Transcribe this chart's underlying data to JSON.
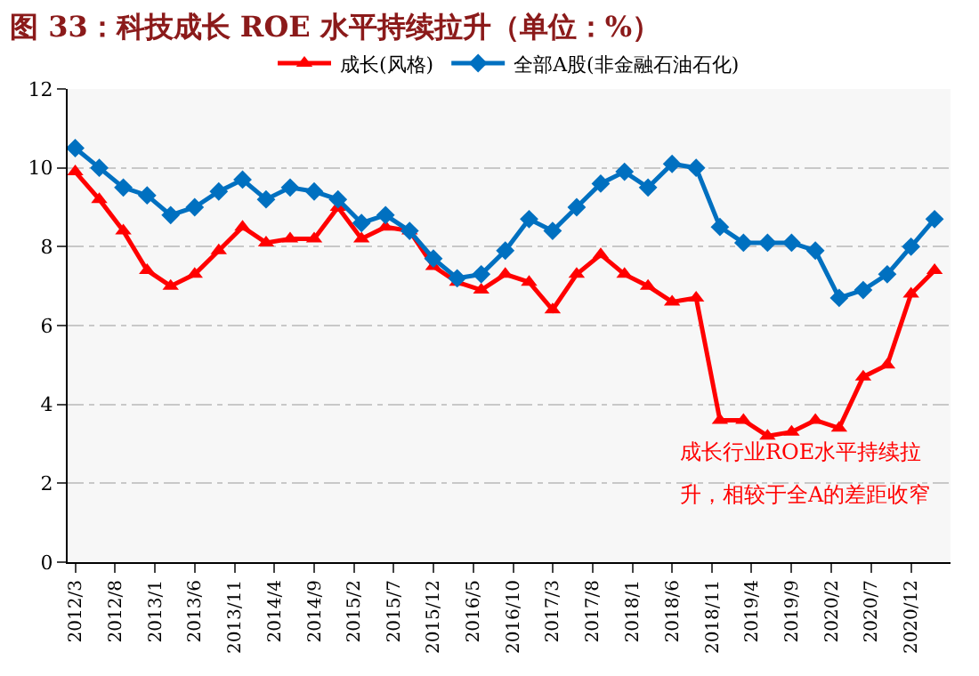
{
  "chart_data": {
    "type": "line",
    "title": "图 33：科技成长 ROE 水平持续拉升（单位：%）",
    "x": [
      "2012-03",
      "2012-06",
      "2012-09",
      "2012-12",
      "2013-03",
      "2013-06",
      "2013-09",
      "2013-12",
      "2014-03",
      "2014-06",
      "2014-09",
      "2014-12",
      "2015-03",
      "2015-06",
      "2015-09",
      "2015-12",
      "2016-03",
      "2016-06",
      "2016-09",
      "2016-12",
      "2017-03",
      "2017-06",
      "2017-09",
      "2017-12",
      "2018-03",
      "2018-06",
      "2018-09",
      "2018-12",
      "2019-03",
      "2019-06",
      "2019-09",
      "2019-12",
      "2020-03",
      "2020-06",
      "2020-09",
      "2020-12",
      "2021-03"
    ],
    "series": [
      {
        "name": "成长(风格)",
        "color": "#ff0000",
        "marker": "triangle",
        "values": [
          9.9,
          9.2,
          8.4,
          7.4,
          7.0,
          7.3,
          7.9,
          8.5,
          8.1,
          8.2,
          8.2,
          9.0,
          8.2,
          8.5,
          8.4,
          7.5,
          7.1,
          6.9,
          7.3,
          7.1,
          6.4,
          7.3,
          7.8,
          7.3,
          7.0,
          6.6,
          6.7,
          3.6,
          3.6,
          3.2,
          3.3,
          3.6,
          3.4,
          4.7,
          5.0,
          6.8,
          7.4
        ]
      },
      {
        "name": "全部A股(非金融石油石化)",
        "color": "#0070c0",
        "marker": "diamond",
        "values": [
          10.5,
          10.0,
          9.5,
          9.3,
          8.8,
          9.0,
          9.4,
          9.7,
          9.2,
          9.5,
          9.4,
          9.2,
          8.6,
          8.8,
          8.4,
          7.7,
          7.2,
          7.3,
          7.9,
          8.7,
          8.4,
          9.0,
          9.6,
          9.9,
          9.5,
          10.1,
          10.0,
          8.5,
          8.1,
          8.1,
          8.1,
          7.9,
          6.7,
          6.9,
          7.3,
          8.0,
          8.7
        ]
      }
    ],
    "xlim": [
      "2012-02",
      "2021-05"
    ],
    "xticks": [
      {
        "value": "2012-03",
        "label": "2012/3"
      },
      {
        "value": "2012-08",
        "label": "2012/8"
      },
      {
        "value": "2013-01",
        "label": "2013/1"
      },
      {
        "value": "2013-06",
        "label": "2013/6"
      },
      {
        "value": "2013-11",
        "label": "2013/11"
      },
      {
        "value": "2014-04",
        "label": "2014/4"
      },
      {
        "value": "2014-09",
        "label": "2014/9"
      },
      {
        "value": "2015-02",
        "label": "2015/2"
      },
      {
        "value": "2015-07",
        "label": "2015/7"
      },
      {
        "value": "2015-12",
        "label": "2015/12"
      },
      {
        "value": "2016-05",
        "label": "2016/5"
      },
      {
        "value": "2016-10",
        "label": "2016/10"
      },
      {
        "value": "2017-03",
        "label": "2017/3"
      },
      {
        "value": "2017-08",
        "label": "2017/8"
      },
      {
        "value": "2018-01",
        "label": "2018/1"
      },
      {
        "value": "2018-06",
        "label": "2018/6"
      },
      {
        "value": "2018-11",
        "label": "2018/11"
      },
      {
        "value": "2019-04",
        "label": "2019/4"
      },
      {
        "value": "2019-09",
        "label": "2019/9"
      },
      {
        "value": "2020-02",
        "label": "2020/2"
      },
      {
        "value": "2020-07",
        "label": "2020/7"
      },
      {
        "value": "2020-12",
        "label": "2020/12"
      }
    ],
    "ylim": [
      0,
      12
    ],
    "yticks": [
      0,
      2,
      4,
      6,
      8,
      10,
      12
    ],
    "grid": "y",
    "legend": "top",
    "annotations": [
      "成长行业ROE水平持续拉",
      "升，相较于全A的差距收窄"
    ]
  }
}
